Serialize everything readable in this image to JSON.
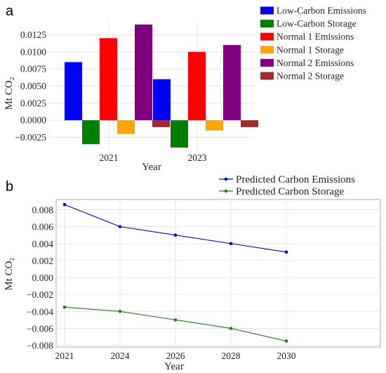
{
  "panels": [
    {
      "letter": "a",
      "ylabel": "Mt CO₂",
      "xlabel": "Year"
    },
    {
      "letter": "b",
      "ylabel": "Mt CO₂",
      "xlabel": "Year"
    }
  ],
  "chart_data": [
    {
      "type": "bar",
      "categories": [
        "2021",
        "2023"
      ],
      "series": [
        {
          "name": "Low-Carbon Emissions",
          "color": "#0000ff",
          "values": [
            0.0085,
            0.006
          ]
        },
        {
          "name": "Low-Carbon Storage",
          "color": "#008000",
          "values": [
            -0.0035,
            -0.004
          ]
        },
        {
          "name": "Normal 1 Emissions",
          "color": "#ff0000",
          "values": [
            0.012,
            0.01
          ]
        },
        {
          "name": "Normal 1 Storage",
          "color": "#ffa500",
          "values": [
            -0.002,
            -0.0015
          ]
        },
        {
          "name": "Normal 2 Emissions",
          "color": "#800080",
          "values": [
            0.014,
            0.011
          ]
        },
        {
          "name": "Normal 2 Storage",
          "color": "#a52a2a",
          "values": [
            -0.001,
            -0.001
          ]
        }
      ],
      "yticks": [
        "−0.0025",
        "0.0000",
        "0.0025",
        "0.0050",
        "0.0075",
        "0.0100",
        "0.0125"
      ],
      "ylim": [
        -0.0045,
        0.0145
      ],
      "xlabel": "Year",
      "ylabel": "Mt CO₂",
      "grid": true,
      "legend": "top-right, outside"
    },
    {
      "type": "line",
      "x": [
        "2021",
        "2024",
        "2026",
        "2028",
        "2030"
      ],
      "series": [
        {
          "name": "Predicted Carbon Emissions",
          "color": "#0000cc",
          "values": [
            0.0086,
            0.006,
            0.005,
            0.004,
            0.003
          ]
        },
        {
          "name": "Predicted Carbon Storage",
          "color": "#1e7b1e",
          "values": [
            -0.0035,
            -0.004,
            -0.005,
            -0.006,
            -0.0075
          ]
        }
      ],
      "yticks": [
        "−0.008",
        "−0.006",
        "−0.004",
        "−0.002",
        "0.000",
        "0.002",
        "0.004",
        "0.006",
        "0.008"
      ],
      "ylim": [
        -0.0082,
        0.0092
      ],
      "xlabel": "Year",
      "ylabel": "Mt CO₂",
      "grid": true,
      "legend": "top-right, above plot"
    }
  ]
}
